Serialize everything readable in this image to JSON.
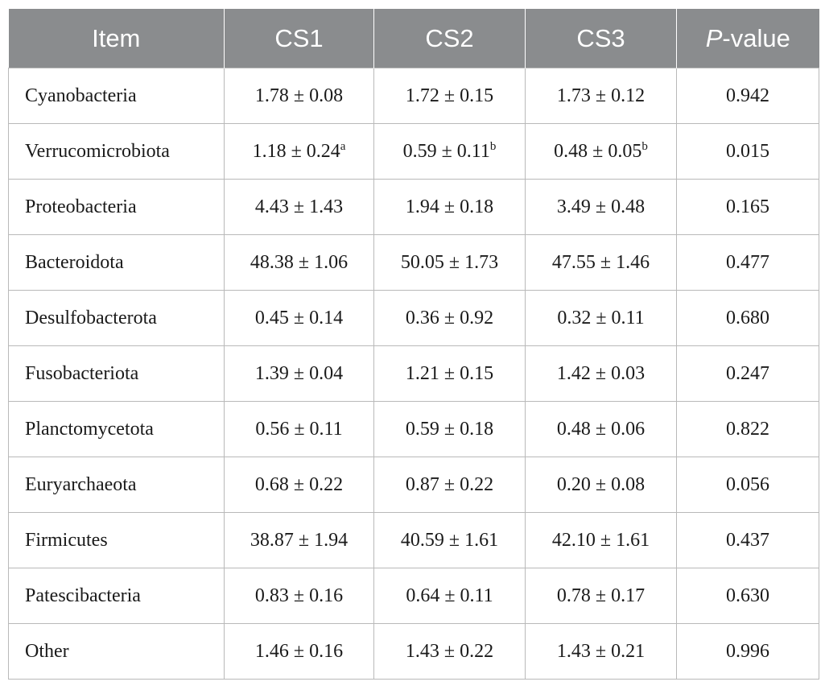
{
  "table": {
    "headers": {
      "item": "Item",
      "cs1": "CS1",
      "cs2": "CS2",
      "cs3": "CS3",
      "pvalue_italic": "P",
      "pvalue_rest": "-value"
    },
    "rows": [
      {
        "item": "Cyanobacteria",
        "cs1": "1.78 ± 0.08",
        "cs1_sup": "",
        "cs2": "1.72 ± 0.15",
        "cs2_sup": "",
        "cs3": "1.73 ± 0.12",
        "cs3_sup": "",
        "p": "0.942"
      },
      {
        "item": "Verrucomicrobiota",
        "cs1": "1.18 ± 0.24",
        "cs1_sup": "a",
        "cs2": "0.59 ± 0.11",
        "cs2_sup": "b",
        "cs3": "0.48 ± 0.05",
        "cs3_sup": "b",
        "p": "0.015"
      },
      {
        "item": "Proteobacteria",
        "cs1": "4.43 ± 1.43",
        "cs1_sup": "",
        "cs2": "1.94 ± 0.18",
        "cs2_sup": "",
        "cs3": "3.49 ± 0.48",
        "cs3_sup": "",
        "p": "0.165"
      },
      {
        "item": "Bacteroidota",
        "cs1": "48.38 ± 1.06",
        "cs1_sup": "",
        "cs2": "50.05 ± 1.73",
        "cs2_sup": "",
        "cs3": "47.55 ± 1.46",
        "cs3_sup": "",
        "p": "0.477"
      },
      {
        "item": "Desulfobacterota",
        "cs1": "0.45 ± 0.14",
        "cs1_sup": "",
        "cs2": "0.36 ± 0.92",
        "cs2_sup": "",
        "cs3": "0.32 ± 0.11",
        "cs3_sup": "",
        "p": "0.680"
      },
      {
        "item": "Fusobacteriota",
        "cs1": "1.39 ± 0.04",
        "cs1_sup": "",
        "cs2": "1.21 ± 0.15",
        "cs2_sup": "",
        "cs3": "1.42 ± 0.03",
        "cs3_sup": "",
        "p": "0.247"
      },
      {
        "item": "Planctomycetota",
        "cs1": "0.56 ± 0.11",
        "cs1_sup": "",
        "cs2": "0.59 ± 0.18",
        "cs2_sup": "",
        "cs3": "0.48 ± 0.06",
        "cs3_sup": "",
        "p": "0.822"
      },
      {
        "item": "Euryarchaeota",
        "cs1": "0.68 ± 0.22",
        "cs1_sup": "",
        "cs2": "0.87 ± 0.22",
        "cs2_sup": "",
        "cs3": "0.20 ± 0.08",
        "cs3_sup": "",
        "p": "0.056"
      },
      {
        "item": "Firmicutes",
        "cs1": "38.87 ± 1.94",
        "cs1_sup": "",
        "cs2": "40.59 ± 1.61",
        "cs2_sup": "",
        "cs3": "42.10 ± 1.61",
        "cs3_sup": "",
        "p": "0.437"
      },
      {
        "item": "Patescibacteria",
        "cs1": "0.83 ± 0.16",
        "cs1_sup": "",
        "cs2": "0.64 ± 0.11",
        "cs2_sup": "",
        "cs3": "0.78 ± 0.17",
        "cs3_sup": "",
        "p": "0.630"
      },
      {
        "item": "Other",
        "cs1": "1.46 ± 0.16",
        "cs1_sup": "",
        "cs2": "1.43 ± 0.22",
        "cs2_sup": "",
        "cs3": "1.43 ± 0.21",
        "cs3_sup": "",
        "p": "0.996"
      }
    ]
  },
  "colors": {
    "header_background": "#8a8c8e",
    "header_text": "#ffffff",
    "grid_lines": "#b9b9b9",
    "body_text": "#1a1a1a"
  }
}
